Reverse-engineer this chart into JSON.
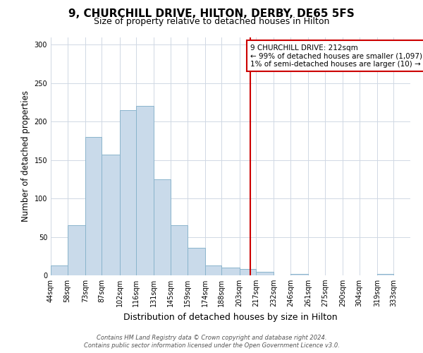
{
  "title": "9, CHURCHILL DRIVE, HILTON, DERBY, DE65 5FS",
  "subtitle": "Size of property relative to detached houses in Hilton",
  "xlabel": "Distribution of detached houses by size in Hilton",
  "ylabel": "Number of detached properties",
  "bin_labels": [
    "44sqm",
    "58sqm",
    "73sqm",
    "87sqm",
    "102sqm",
    "116sqm",
    "131sqm",
    "145sqm",
    "159sqm",
    "174sqm",
    "188sqm",
    "203sqm",
    "217sqm",
    "232sqm",
    "246sqm",
    "261sqm",
    "275sqm",
    "290sqm",
    "304sqm",
    "319sqm",
    "333sqm"
  ],
  "bin_edges": [
    44,
    58,
    73,
    87,
    102,
    116,
    131,
    145,
    159,
    174,
    188,
    203,
    217,
    232,
    246,
    261,
    275,
    290,
    304,
    319,
    333
  ],
  "bar_heights": [
    13,
    65,
    180,
    157,
    215,
    220,
    125,
    65,
    36,
    13,
    10,
    8,
    5,
    0,
    2,
    0,
    0,
    0,
    0,
    2
  ],
  "bar_facecolor": "#c9daea",
  "bar_edgecolor": "#8ab4cc",
  "ylim": [
    0,
    310
  ],
  "yticks": [
    0,
    50,
    100,
    150,
    200,
    250,
    300
  ],
  "vline_x": 212,
  "vline_color": "#cc0000",
  "annotation_title": "9 CHURCHILL DRIVE: 212sqm",
  "annotation_line1": "← 99% of detached houses are smaller (1,097)",
  "annotation_line2": "1% of semi-detached houses are larger (10) →",
  "annotation_box_color": "#cc0000",
  "footnote1": "Contains HM Land Registry data © Crown copyright and database right 2024.",
  "footnote2": "Contains public sector information licensed under the Open Government Licence v3.0.",
  "background_color": "#ffffff",
  "grid_color": "#d0d8e4",
  "title_fontsize": 11,
  "subtitle_fontsize": 9,
  "ylabel_fontsize": 8.5,
  "xlabel_fontsize": 9,
  "tick_fontsize": 7,
  "annot_fontsize": 7.5,
  "footnote_fontsize": 6
}
